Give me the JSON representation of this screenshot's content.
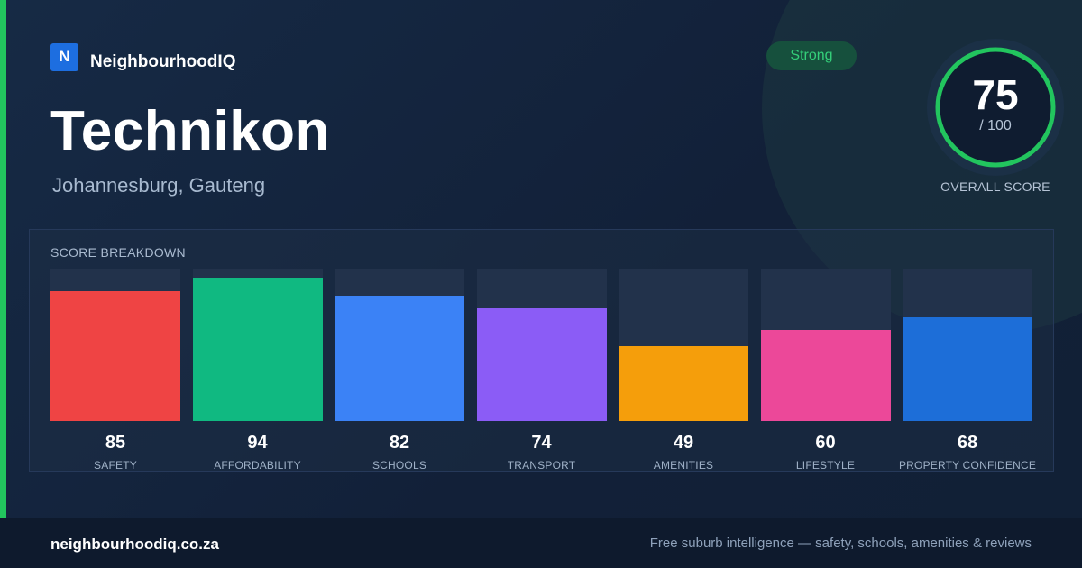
{
  "brand": {
    "logo_letter": "N",
    "name": "NeighbourhoodIQ",
    "logo_color": "#1d6ee0"
  },
  "suburb": {
    "name": "Technikon",
    "location": "Johannesburg, Gauteng"
  },
  "rating": {
    "label": "Strong",
    "color": "#34d07a"
  },
  "overall": {
    "value": "75",
    "max": "/ 100",
    "label": "OVERALL SCORE",
    "ring_fraction": 0.75
  },
  "breakdown": {
    "title": "SCORE BREAKDOWN",
    "max_value": 100
  },
  "chart_data": {
    "type": "bar",
    "title": "SCORE BREAKDOWN",
    "categories": [
      "SAFETY",
      "AFFORDABILITY",
      "SCHOOLS",
      "TRANSPORT",
      "AMENITIES",
      "LIFESTYLE",
      "PROPERTY CONFIDENCE"
    ],
    "values": [
      85,
      94,
      82,
      74,
      49,
      60,
      68
    ],
    "colors": [
      "#ef4444",
      "#10b981",
      "#3b82f6",
      "#8b5cf6",
      "#f59e0b",
      "#ec4899",
      "#1d6ed8"
    ],
    "ylim": [
      0,
      100
    ]
  },
  "footer": {
    "url": "neighbourhoodiq.co.za",
    "tagline": "Free suburb intelligence — safety, schools, amenities & reviews"
  },
  "colors": {
    "accent": "#22c55e",
    "background": "#13223a",
    "footer": "#0e1a2d"
  }
}
